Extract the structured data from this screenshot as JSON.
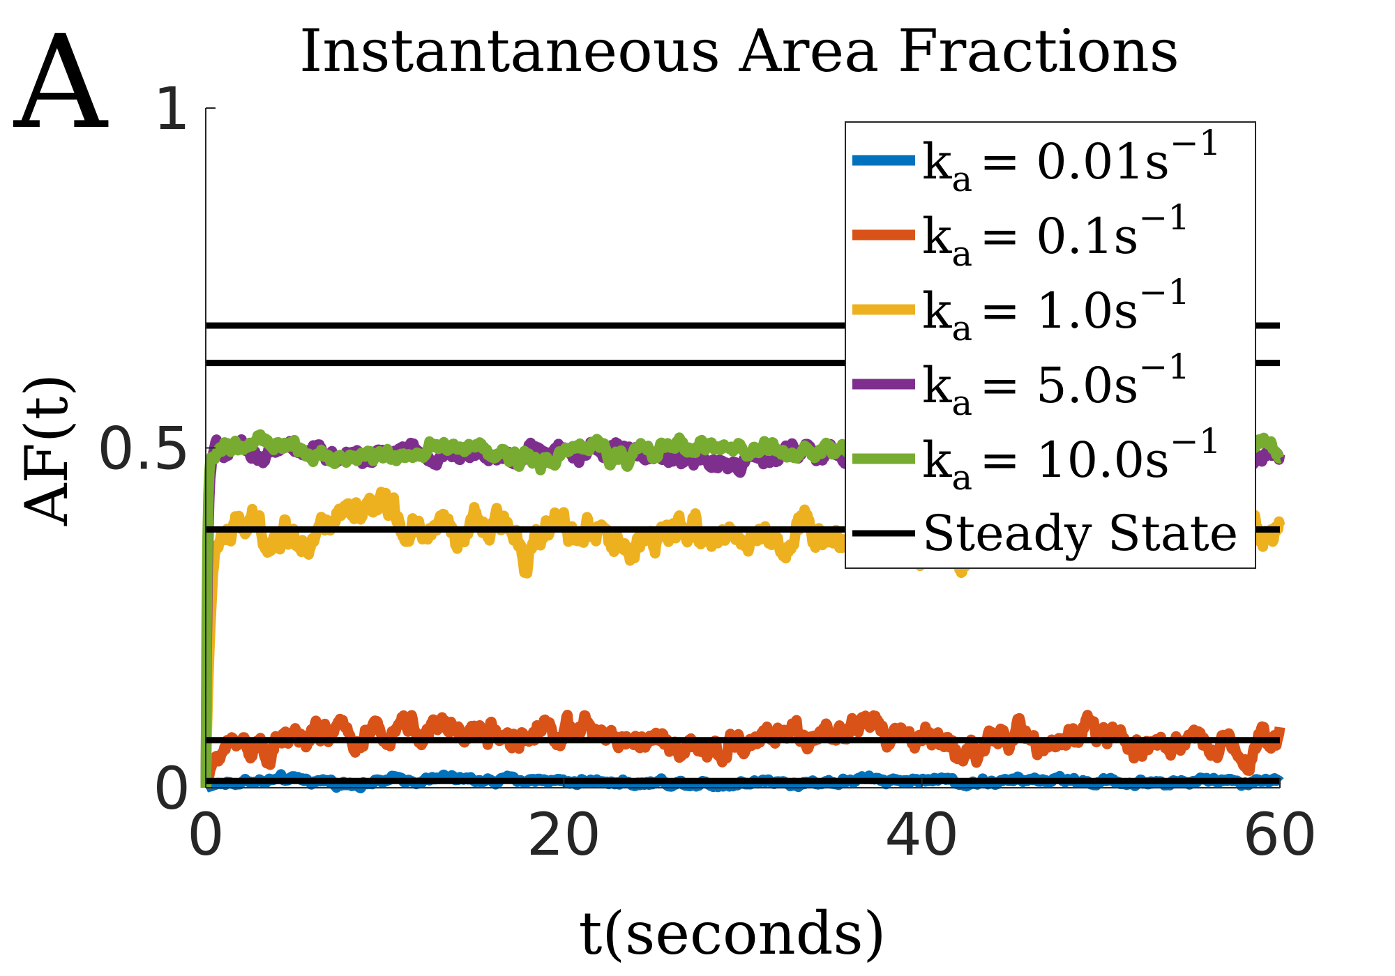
{
  "panel_label": "A",
  "chart_data": {
    "type": "line",
    "title": "Instantaneous Area Fractions",
    "xlabel": "t(seconds)",
    "ylabel": "AF(t)",
    "xlim": [
      0,
      60
    ],
    "ylim": [
      0,
      1
    ],
    "x_ticks": [
      0,
      20,
      40,
      60
    ],
    "x_tick_labels": [
      "0",
      "20",
      "40",
      "60"
    ],
    "y_ticks": [
      0,
      0.5,
      1
    ],
    "y_tick_labels": [
      "0",
      "0.5",
      "1"
    ],
    "grid": false,
    "legend_position": "top-right",
    "series": [
      {
        "name_base": "k",
        "name_sub": "a",
        "name_value": "= 0.01s",
        "name_sup": "−1",
        "color": "#0072BD",
        "steady": 0.01,
        "noise": 0.005,
        "rate": 1.2
      },
      {
        "name_base": "k",
        "name_sub": "a",
        "name_value": "= 0.1s",
        "name_sup": "−1",
        "color": "#D95319",
        "steady": 0.07,
        "noise": 0.02,
        "rate": 1.5
      },
      {
        "name_base": "k",
        "name_sub": "a",
        "name_value": "= 1.0s",
        "name_sup": "−1",
        "color": "#EDB120",
        "steady": 0.375,
        "noise": 0.025,
        "rate": 4.0
      },
      {
        "name_base": "k",
        "name_sub": "a",
        "name_value": "= 5.0s",
        "name_sup": "−1",
        "color": "#7E2F8E",
        "steady": 0.49,
        "noise": 0.012,
        "rate": 10.0
      },
      {
        "name_base": "k",
        "name_sub": "a",
        "name_value": "= 10.0s",
        "name_sup": "−1",
        "color": "#77AC30",
        "steady": 0.495,
        "noise": 0.012,
        "rate": 14.0
      }
    ],
    "steady_state": {
      "name": "Steady State",
      "color": "#000000",
      "values": [
        0.01,
        0.07,
        0.38,
        0.625,
        0.68
      ]
    }
  }
}
